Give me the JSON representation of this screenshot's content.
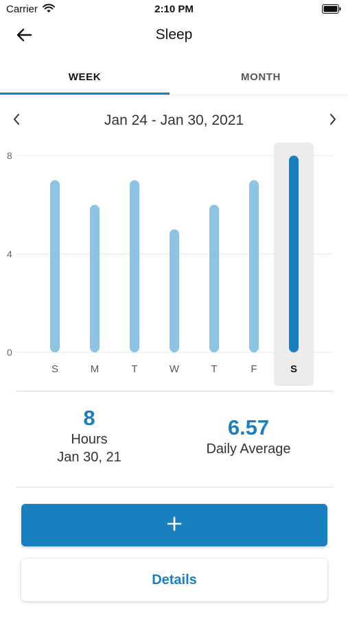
{
  "status_bar": {
    "carrier": "Carrier",
    "time": "2:10 PM"
  },
  "nav": {
    "title": "Sleep",
    "back_icon": "arrow-left-icon"
  },
  "tabs": [
    {
      "label": "WEEK",
      "active": true
    },
    {
      "label": "MONTH",
      "active": false
    }
  ],
  "date_range": "Jan 24 - Jan 30, 2021",
  "chart_data": {
    "type": "bar",
    "categories": [
      "S",
      "M",
      "T",
      "W",
      "T",
      "F",
      "S"
    ],
    "values": [
      7,
      6,
      7,
      5,
      6,
      7,
      8
    ],
    "selected_index": 6,
    "ylim": [
      0,
      8
    ],
    "yticks": [
      "0",
      "4",
      "8"
    ],
    "grid": true,
    "colors": {
      "bar": "#8dc3e3",
      "selected_bar": "#1a7fbf",
      "highlight": "#ececec"
    }
  },
  "stats": {
    "selected": {
      "value": "8",
      "unit": "Hours",
      "date": "Jan 30, 21"
    },
    "average": {
      "value": "6.57",
      "label": "Daily Average"
    }
  },
  "actions": {
    "add_label": "+",
    "details_label": "Details"
  },
  "colors": {
    "accent": "#1a7fbf"
  }
}
